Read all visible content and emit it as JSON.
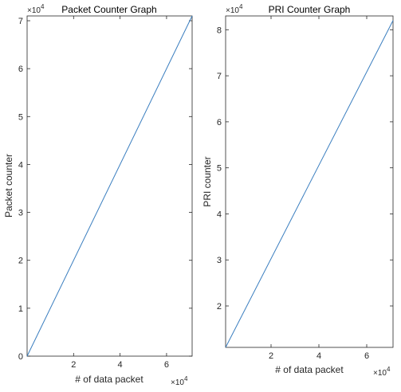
{
  "chart_data": [
    {
      "type": "line",
      "title": "Packet Counter Graph",
      "xlabel": "# of data packet",
      "ylabel": "Packet counter",
      "x_multiplier": "×10",
      "x_exponent": "4",
      "y_multiplier": "×10",
      "y_exponent": "4",
      "xlim": [
        0,
        71000
      ],
      "ylim": [
        0,
        71000
      ],
      "xticks": [
        20000,
        40000,
        60000
      ],
      "xtick_labels": [
        "2",
        "4",
        "6"
      ],
      "yticks": [
        0,
        10000,
        20000,
        30000,
        40000,
        50000,
        60000,
        70000
      ],
      "ytick_labels": [
        "0",
        "1",
        "2",
        "3",
        "4",
        "5",
        "6",
        "7"
      ],
      "grid": false,
      "line_color": "#3a7ebf",
      "series": [
        {
          "x": [
            0,
            71000
          ],
          "y": [
            0,
            71000
          ]
        }
      ]
    },
    {
      "type": "line",
      "title": "PRI Counter Graph",
      "xlabel": "# of data packet",
      "ylabel": "PRI counter",
      "x_multiplier": "×10",
      "x_exponent": "4",
      "y_multiplier": "×10",
      "y_exponent": "4",
      "xlim": [
        1000,
        71000
      ],
      "ylim": [
        11000,
        83000
      ],
      "xticks": [
        20000,
        40000,
        60000
      ],
      "xtick_labels": [
        "2",
        "4",
        "6"
      ],
      "yticks": [
        20000,
        30000,
        40000,
        50000,
        60000,
        70000,
        80000
      ],
      "ytick_labels": [
        "2",
        "3",
        "4",
        "5",
        "6",
        "7",
        "8"
      ],
      "grid": false,
      "line_color": "#3a7ebf",
      "series": [
        {
          "x": [
            1000,
            71000
          ],
          "y": [
            11000,
            82000
          ]
        }
      ]
    }
  ]
}
